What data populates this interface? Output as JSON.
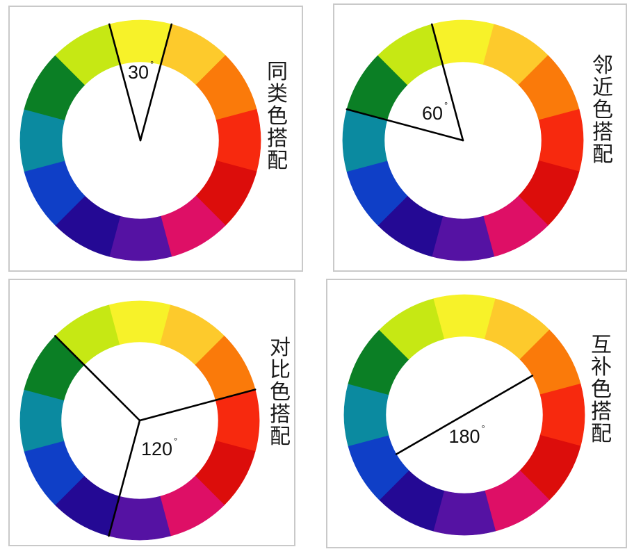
{
  "wheel_colors": [
    "#f7f229",
    "#fdca2c",
    "#fa7a0a",
    "#f7290e",
    "#dc0d0b",
    "#de0f66",
    "#5512a3",
    "#240994",
    "#0f3fc7",
    "#0b8aa0",
    "#0b7f25",
    "#c6e814"
  ],
  "line_color": "#000000",
  "panels": [
    {
      "id": "similar",
      "title": "同类色搭配",
      "chars": [
        "同",
        "类",
        "色",
        "搭",
        "配"
      ],
      "angle_text": "30",
      "degree_symbol": "°",
      "center": [
        202,
        202
      ],
      "outer_radius": 173,
      "inner_radius": 113,
      "rays": [
        -15,
        15
      ],
      "ray_length": 173,
      "title_pos": [
        384,
        88
      ],
      "angle_pos": [
        184,
        113
      ]
    },
    {
      "id": "adjacent",
      "title": "邻近色搭配",
      "chars": [
        "邻",
        "近",
        "色",
        "搭",
        "配"
      ],
      "angle_text": "60",
      "degree_symbol": "°",
      "center": [
        666,
        202
      ],
      "outer_radius": 173,
      "inner_radius": 113,
      "rays": [
        -15,
        -75
      ],
      "ray_length": 173,
      "title_pos": [
        852,
        79
      ],
      "angle_pos": [
        607,
        172
      ]
    },
    {
      "id": "triadic",
      "title": "对比色搭配",
      "chars": [
        "对",
        "比",
        "色",
        "搭",
        "配"
      ],
      "angle_text": "120",
      "degree_symbol": "°",
      "center": [
        201,
        605
      ],
      "outer_radius": 172,
      "inner_radius": 113,
      "rays": [
        -45,
        75,
        195
      ],
      "ray_length": 172,
      "title_pos": [
        388,
        485
      ],
      "angle_pos": [
        203,
        655
      ]
    },
    {
      "id": "complementary",
      "title": "互补色搭配",
      "chars": [
        "互",
        "补",
        "色",
        "搭",
        "配"
      ],
      "angle_text": "180",
      "degree_symbol": "°",
      "center": [
        668,
        597
      ],
      "outer_radius": 173,
      "inner_radius": 113,
      "rays": [
        -120,
        60
      ],
      "ray_length": 113,
      "title_pos": [
        850,
        481
      ],
      "angle_pos": [
        668,
        637
      ]
    }
  ]
}
